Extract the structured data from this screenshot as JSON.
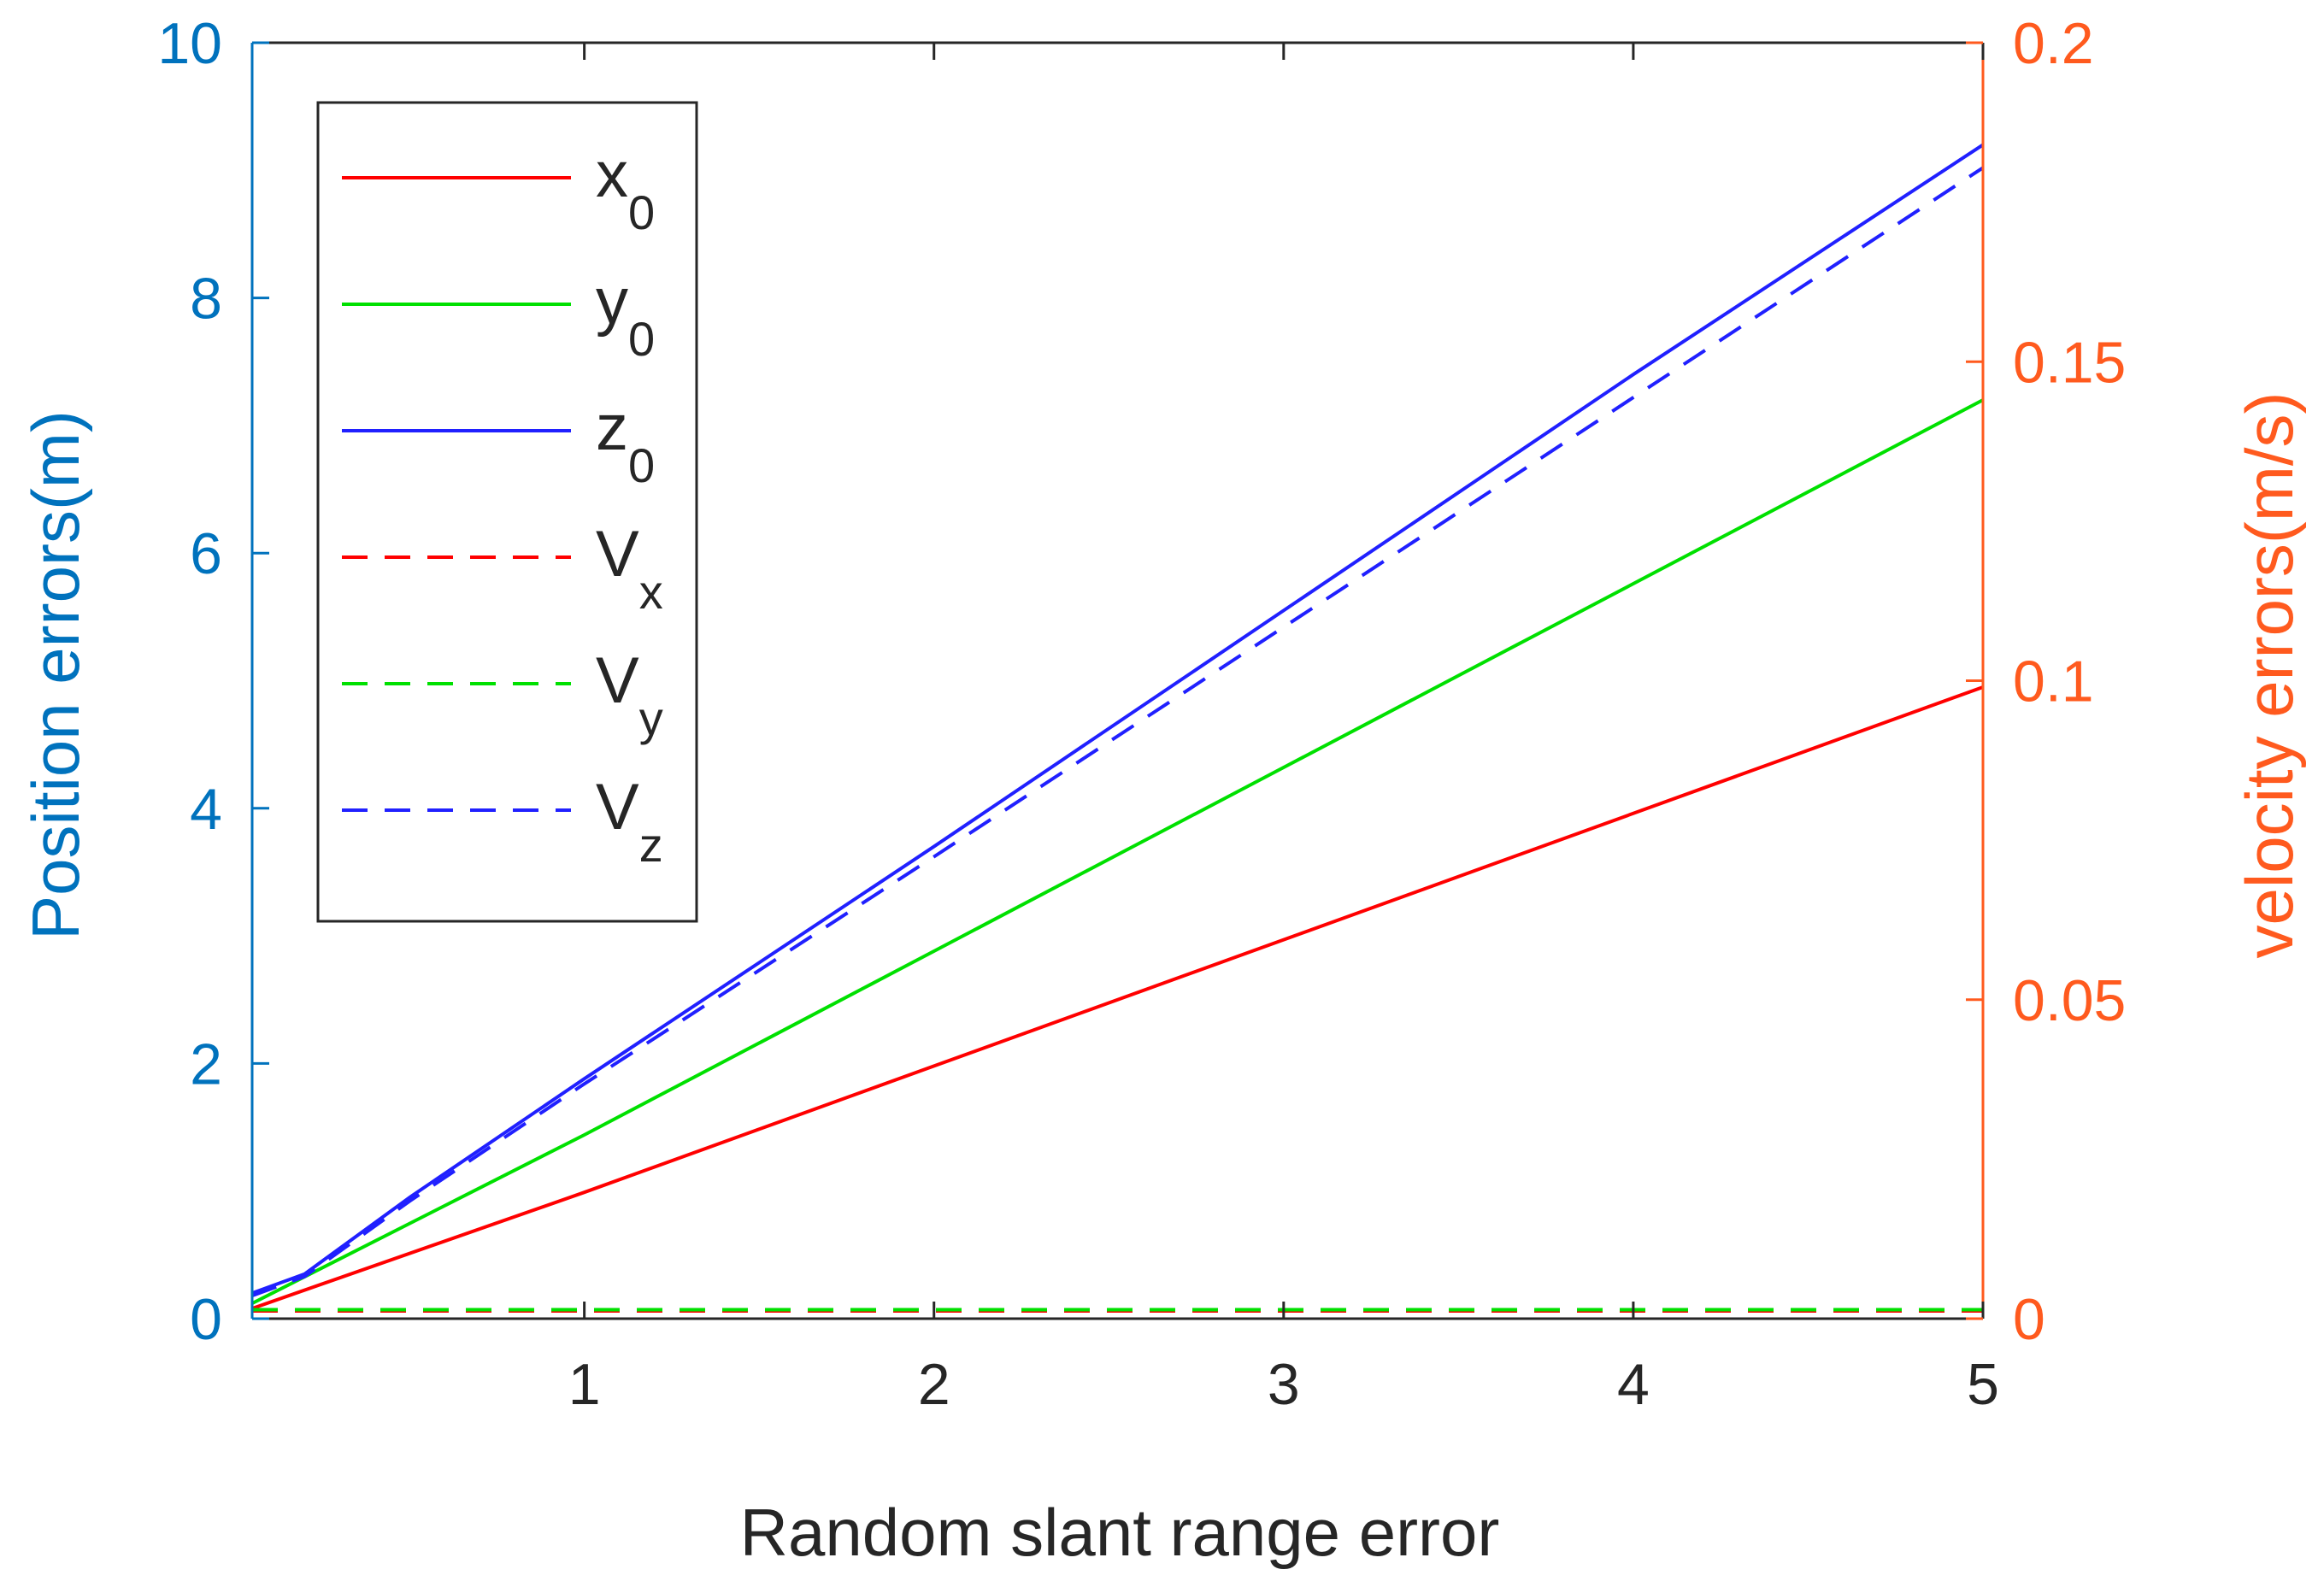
{
  "chart_data": {
    "type": "line",
    "xlabel": "Random slant range error",
    "ylabel_left": "Position errors(m)",
    "ylabel_right": "velocity errors(m/s)",
    "xlim": [
      0.05,
      5
    ],
    "ylim_left": [
      0,
      10
    ],
    "ylim_right": [
      0,
      0.2
    ],
    "x_ticks": [
      1,
      2,
      3,
      4,
      5
    ],
    "y_ticks_left": [
      0,
      2,
      4,
      6,
      8,
      10
    ],
    "y_ticks_right": [
      0,
      0.05,
      0.1,
      0.15,
      0.2
    ],
    "x_tick_labels": [
      "1",
      "2",
      "3",
      "4",
      "5"
    ],
    "y_tick_labels_left": [
      "0",
      "2",
      "4",
      "6",
      "8",
      "10"
    ],
    "y_tick_labels_right": [
      "0",
      "0.05",
      "0.1",
      "0.15",
      "0.2"
    ],
    "grid": false,
    "legend_position": "top-left",
    "colors": {
      "left_axis": "#0072BD",
      "right_axis": "#FF5A1E",
      "frame": "#262626"
    },
    "series": [
      {
        "name": "x",
        "subscript": "0",
        "axis": "left",
        "color": "#FF0000",
        "dash": "solid",
        "x": [
          0.05,
          1,
          2,
          3,
          4,
          5
        ],
        "y": [
          0.08,
          0.99,
          1.98,
          2.97,
          3.96,
          4.95
        ]
      },
      {
        "name": "y",
        "subscript": "0",
        "axis": "left",
        "color": "#00E000",
        "dash": "solid",
        "x": [
          0.05,
          1,
          2,
          3,
          4,
          5
        ],
        "y": [
          0.12,
          1.44,
          2.88,
          4.32,
          5.76,
          7.2
        ]
      },
      {
        "name": "z",
        "subscript": "0",
        "axis": "left",
        "color": "#2020FF",
        "dash": "solid",
        "x": [
          0.05,
          0.2,
          0.5,
          1,
          2,
          3,
          4,
          5
        ],
        "y": [
          0.2,
          0.35,
          0.95,
          1.88,
          3.7,
          5.55,
          7.4,
          9.2
        ]
      },
      {
        "name": "V",
        "subscript": "x",
        "axis": "left",
        "color": "#FF0000",
        "dash": "dashed",
        "x": [
          0.05,
          5
        ],
        "y": [
          0.06,
          0.06
        ]
      },
      {
        "name": "V",
        "subscript": "y",
        "axis": "left",
        "color": "#00E000",
        "dash": "dashed",
        "x": [
          0.05,
          5
        ],
        "y": [
          0.07,
          0.07
        ]
      },
      {
        "name": "V",
        "subscript": "z",
        "axis": "left",
        "color": "#2020FF",
        "dash": "dashed",
        "x": [
          0.05,
          0.2,
          0.5,
          1,
          2,
          3,
          4,
          5
        ],
        "y": [
          0.18,
          0.33,
          0.92,
          1.84,
          3.62,
          5.42,
          7.22,
          9.02
        ]
      }
    ]
  }
}
